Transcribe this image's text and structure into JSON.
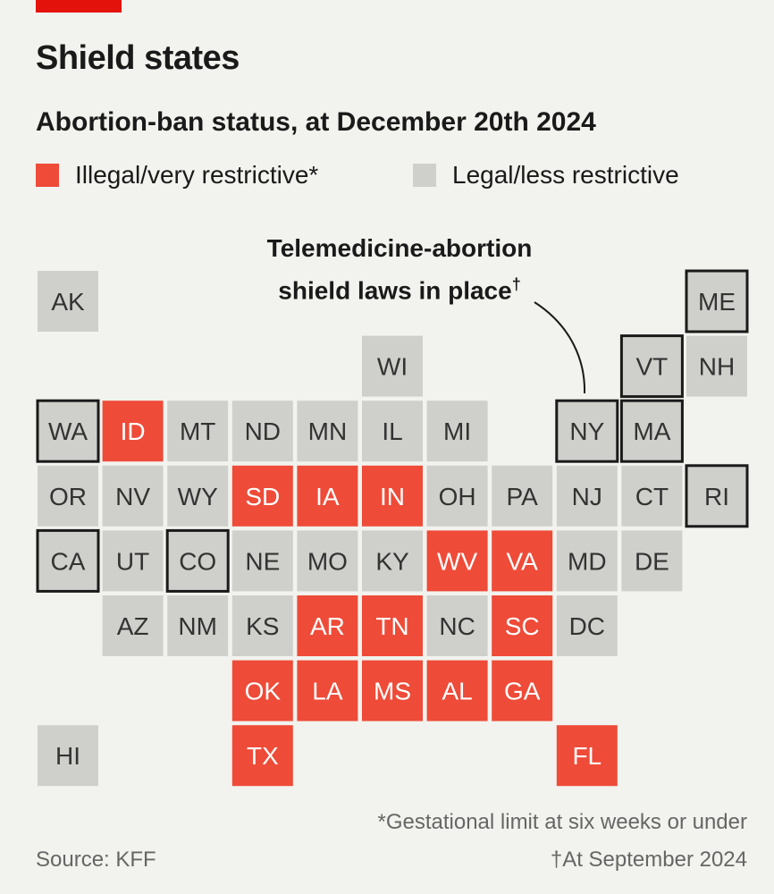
{
  "header": {
    "title": "Shield states",
    "subtitle": "Abortion-ban status, at December 20th 2024"
  },
  "legend": {
    "illegal_label": "Illegal/very restrictive*",
    "legal_label": "Legal/less restrictive"
  },
  "annotation": {
    "line1": "Telemedicine-abortion",
    "line2": "shield laws in place",
    "dagger": "†"
  },
  "footer": {
    "footnote_star": "*Gestational limit at six weeks or under",
    "footnote_dagger": "†At September 2024",
    "source": "Source: KFF"
  },
  "colors": {
    "illegal": "#ee4b38",
    "legal": "#cfcfcb",
    "accent": "#e3120b",
    "background": "#f2f2ee"
  },
  "chart_data": {
    "type": "tile-grid-map",
    "status_legend": {
      "illegal": "Illegal/very restrictive*",
      "legal": "Legal/less restrictive"
    },
    "states": [
      {
        "code": "AK",
        "row": 0,
        "col": 0,
        "status": "legal",
        "shield": false
      },
      {
        "code": "ME",
        "row": 0,
        "col": 10,
        "status": "legal",
        "shield": true
      },
      {
        "code": "WI",
        "row": 1,
        "col": 5,
        "status": "legal",
        "shield": false
      },
      {
        "code": "VT",
        "row": 1,
        "col": 9,
        "status": "legal",
        "shield": true
      },
      {
        "code": "NH",
        "row": 1,
        "col": 10,
        "status": "legal",
        "shield": false
      },
      {
        "code": "WA",
        "row": 2,
        "col": 0,
        "status": "legal",
        "shield": true
      },
      {
        "code": "ID",
        "row": 2,
        "col": 1,
        "status": "illegal",
        "shield": false
      },
      {
        "code": "MT",
        "row": 2,
        "col": 2,
        "status": "legal",
        "shield": false
      },
      {
        "code": "ND",
        "row": 2,
        "col": 3,
        "status": "legal",
        "shield": false
      },
      {
        "code": "MN",
        "row": 2,
        "col": 4,
        "status": "legal",
        "shield": false
      },
      {
        "code": "IL",
        "row": 2,
        "col": 5,
        "status": "legal",
        "shield": false
      },
      {
        "code": "MI",
        "row": 2,
        "col": 6,
        "status": "legal",
        "shield": false
      },
      {
        "code": "NY",
        "row": 2,
        "col": 8,
        "status": "legal",
        "shield": true
      },
      {
        "code": "MA",
        "row": 2,
        "col": 9,
        "status": "legal",
        "shield": true
      },
      {
        "code": "OR",
        "row": 3,
        "col": 0,
        "status": "legal",
        "shield": false
      },
      {
        "code": "NV",
        "row": 3,
        "col": 1,
        "status": "legal",
        "shield": false
      },
      {
        "code": "WY",
        "row": 3,
        "col": 2,
        "status": "legal",
        "shield": false
      },
      {
        "code": "SD",
        "row": 3,
        "col": 3,
        "status": "illegal",
        "shield": false
      },
      {
        "code": "IA",
        "row": 3,
        "col": 4,
        "status": "illegal",
        "shield": false
      },
      {
        "code": "IN",
        "row": 3,
        "col": 5,
        "status": "illegal",
        "shield": false
      },
      {
        "code": "OH",
        "row": 3,
        "col": 6,
        "status": "legal",
        "shield": false
      },
      {
        "code": "PA",
        "row": 3,
        "col": 7,
        "status": "legal",
        "shield": false
      },
      {
        "code": "NJ",
        "row": 3,
        "col": 8,
        "status": "legal",
        "shield": false
      },
      {
        "code": "CT",
        "row": 3,
        "col": 9,
        "status": "legal",
        "shield": false
      },
      {
        "code": "RI",
        "row": 3,
        "col": 10,
        "status": "legal",
        "shield": true
      },
      {
        "code": "CA",
        "row": 4,
        "col": 0,
        "status": "legal",
        "shield": true
      },
      {
        "code": "UT",
        "row": 4,
        "col": 1,
        "status": "legal",
        "shield": false
      },
      {
        "code": "CO",
        "row": 4,
        "col": 2,
        "status": "legal",
        "shield": true
      },
      {
        "code": "NE",
        "row": 4,
        "col": 3,
        "status": "legal",
        "shield": false
      },
      {
        "code": "MO",
        "row": 4,
        "col": 4,
        "status": "legal",
        "shield": false
      },
      {
        "code": "KY",
        "row": 4,
        "col": 5,
        "status": "legal",
        "shield": false
      },
      {
        "code": "WV",
        "row": 4,
        "col": 6,
        "status": "illegal",
        "shield": false
      },
      {
        "code": "VA",
        "row": 4,
        "col": 7,
        "status": "illegal",
        "shield": false
      },
      {
        "code": "MD",
        "row": 4,
        "col": 8,
        "status": "legal",
        "shield": false
      },
      {
        "code": "DE",
        "row": 4,
        "col": 9,
        "status": "legal",
        "shield": false
      },
      {
        "code": "AZ",
        "row": 5,
        "col": 1,
        "status": "legal",
        "shield": false
      },
      {
        "code": "NM",
        "row": 5,
        "col": 2,
        "status": "legal",
        "shield": false
      },
      {
        "code": "KS",
        "row": 5,
        "col": 3,
        "status": "legal",
        "shield": false
      },
      {
        "code": "AR",
        "row": 5,
        "col": 4,
        "status": "illegal",
        "shield": false
      },
      {
        "code": "TN",
        "row": 5,
        "col": 5,
        "status": "illegal",
        "shield": false
      },
      {
        "code": "NC",
        "row": 5,
        "col": 6,
        "status": "legal",
        "shield": false
      },
      {
        "code": "SC",
        "row": 5,
        "col": 7,
        "status": "illegal",
        "shield": false
      },
      {
        "code": "DC",
        "row": 5,
        "col": 8,
        "status": "legal",
        "shield": false
      },
      {
        "code": "OK",
        "row": 6,
        "col": 3,
        "status": "illegal",
        "shield": false
      },
      {
        "code": "LA",
        "row": 6,
        "col": 4,
        "status": "illegal",
        "shield": false
      },
      {
        "code": "MS",
        "row": 6,
        "col": 5,
        "status": "illegal",
        "shield": false
      },
      {
        "code": "AL",
        "row": 6,
        "col": 6,
        "status": "illegal",
        "shield": false
      },
      {
        "code": "GA",
        "row": 6,
        "col": 7,
        "status": "illegal",
        "shield": false
      },
      {
        "code": "HI",
        "row": 7,
        "col": 0,
        "status": "legal",
        "shield": false
      },
      {
        "code": "TX",
        "row": 7,
        "col": 3,
        "status": "illegal",
        "shield": false
      },
      {
        "code": "FL",
        "row": 7,
        "col": 8,
        "status": "illegal",
        "shield": false
      }
    ]
  }
}
